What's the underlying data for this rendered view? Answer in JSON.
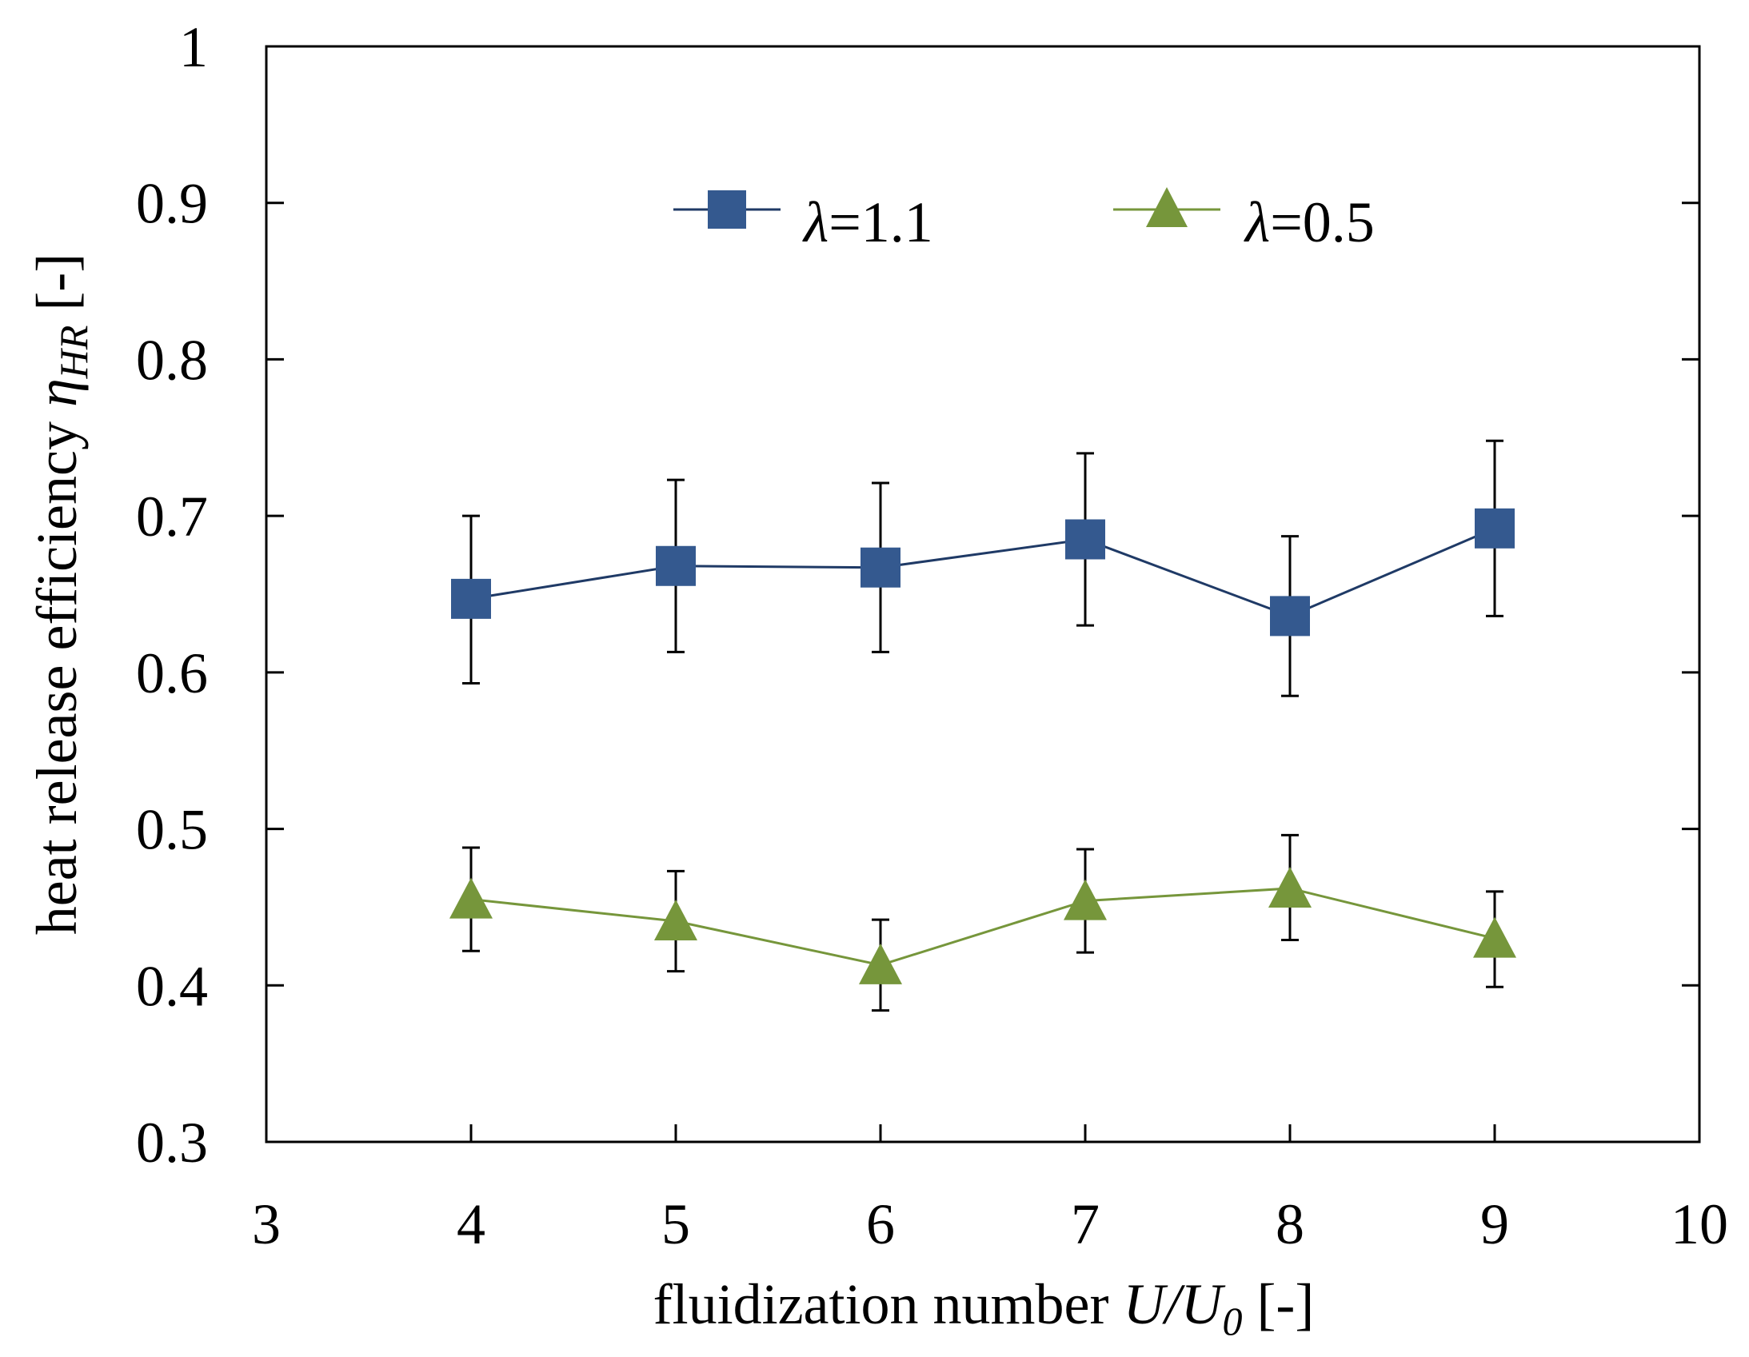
{
  "chart_data": {
    "type": "line",
    "title": "",
    "xlabel": {
      "text": "fluidization number",
      "symbol_main": "U/U",
      "symbol_sub": "0",
      "unit": "[-]"
    },
    "ylabel": {
      "text": "heat release efficiency",
      "symbol_main": "η",
      "symbol_sub": "HR",
      "unit": "[-]"
    },
    "xlim": [
      3,
      10
    ],
    "ylim": [
      0.3,
      1.0
    ],
    "xticks": [
      3,
      4,
      5,
      6,
      7,
      8,
      9,
      10
    ],
    "xtick_labels": [
      "3",
      "4",
      "5",
      "6",
      "7",
      "8",
      "9",
      "10"
    ],
    "yticks": [
      0.3,
      0.4,
      0.5,
      0.6,
      0.7,
      0.8,
      0.9,
      1.0
    ],
    "ytick_labels": [
      "0.3",
      "0.4",
      "0.5",
      "0.6",
      "0.7",
      "0.8",
      "0.9",
      "1"
    ],
    "grid": false,
    "legend_position": "top-center",
    "series": [
      {
        "name_symbol": "λ",
        "name_value": "=1.1",
        "marker": "square",
        "color": "#34598f",
        "line_color": "#1f3a66",
        "x": [
          4,
          5,
          6,
          7,
          8,
          9
        ],
        "y": [
          0.647,
          0.668,
          0.667,
          0.685,
          0.636,
          0.692
        ],
        "err_low": [
          0.593,
          0.613,
          0.613,
          0.63,
          0.585,
          0.636
        ],
        "err_high": [
          0.7,
          0.723,
          0.721,
          0.74,
          0.687,
          0.748
        ]
      },
      {
        "name_symbol": "λ",
        "name_value": "=0.5",
        "marker": "triangle",
        "color": "#76963b",
        "line_color": "#76963b",
        "x": [
          4,
          5,
          6,
          7,
          8,
          9
        ],
        "y": [
          0.455,
          0.441,
          0.413,
          0.454,
          0.462,
          0.43
        ],
        "err_low": [
          0.422,
          0.409,
          0.384,
          0.421,
          0.429,
          0.399
        ],
        "err_high": [
          0.488,
          0.473,
          0.442,
          0.487,
          0.496,
          0.46
        ]
      }
    ]
  }
}
